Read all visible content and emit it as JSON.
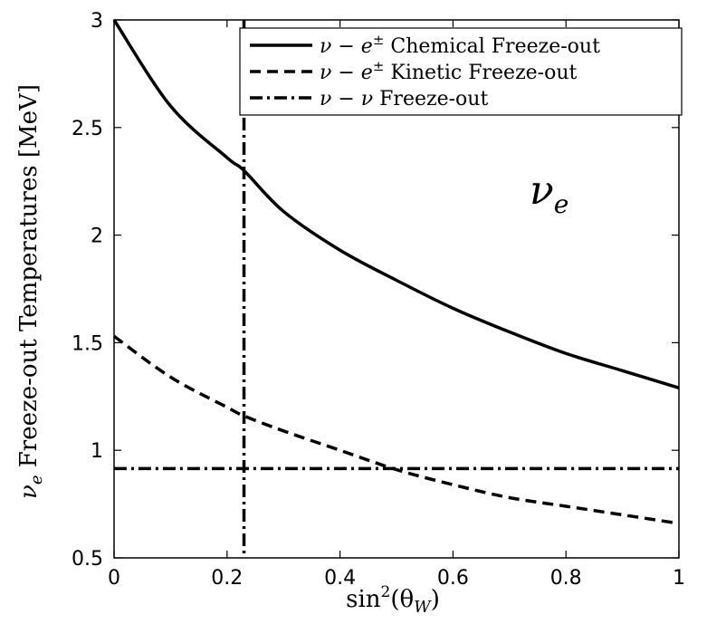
{
  "chart_data": {
    "type": "line",
    "title": "",
    "xlabel": "sin²(θ_W)",
    "ylabel": "ν_e Freeze-out Temperatures [MeV]",
    "xlim": [
      0,
      1
    ],
    "ylim": [
      0.5,
      3
    ],
    "xticks": [
      0,
      0.2,
      0.4,
      0.6,
      0.8,
      1
    ],
    "xtick_labels": [
      "0",
      "0.2",
      "0.4",
      "0.6",
      "0.8",
      "1"
    ],
    "yticks": [
      0.5,
      1,
      1.5,
      2,
      2.5,
      3
    ],
    "ytick_labels": [
      "0.5",
      "1",
      "1.5",
      "2",
      "2.5",
      "3"
    ],
    "grid": false,
    "legend_position": "top-right",
    "annotation": "ν_e",
    "series": [
      {
        "name": "ν − e± Chemical Freeze-out",
        "style": "solid",
        "x": [
          0,
          0.1,
          0.2,
          0.23,
          0.3,
          0.4,
          0.5,
          0.6,
          0.7,
          0.8,
          0.9,
          1.0
        ],
        "y": [
          3.0,
          2.6,
          2.36,
          2.3,
          2.11,
          1.93,
          1.79,
          1.66,
          1.55,
          1.45,
          1.37,
          1.29
        ]
      },
      {
        "name": "ν − e± Kinetic Freeze-out",
        "style": "dashed",
        "x": [
          0,
          0.1,
          0.2,
          0.23,
          0.3,
          0.4,
          0.5,
          0.6,
          0.7,
          0.8,
          0.9,
          1.0
        ],
        "y": [
          1.53,
          1.34,
          1.2,
          1.16,
          1.09,
          1.0,
          0.91,
          0.84,
          0.78,
          0.74,
          0.7,
          0.66
        ]
      },
      {
        "name": "ν − ν Freeze-out",
        "style": "dashdot",
        "x": [
          0,
          1.0
        ],
        "y": [
          0.915,
          0.915
        ]
      }
    ],
    "vertical_line": {
      "x": 0.23,
      "style": "dashdot"
    }
  },
  "text": {
    "xlabel_pre": "sin",
    "xlabel_sup": "2",
    "xlabel_post": "(θ",
    "xlabel_sub": "W",
    "xlabel_end": ")",
    "ylabel_nu": "ν",
    "ylabel_sub": "e",
    "ylabel_rest": " Freeze-out Temperatures [MeV]",
    "annot_nu": "ν",
    "annot_sub": "e",
    "legend": [
      {
        "a": "ν − e",
        "sup": "±",
        "b": " Chemical Freeze-out"
      },
      {
        "a": "ν − e",
        "sup": "±",
        "b": " Kinetic Freeze-out"
      },
      {
        "a": "ν − ν",
        "sup": "",
        "b": " Freeze-out"
      }
    ]
  }
}
